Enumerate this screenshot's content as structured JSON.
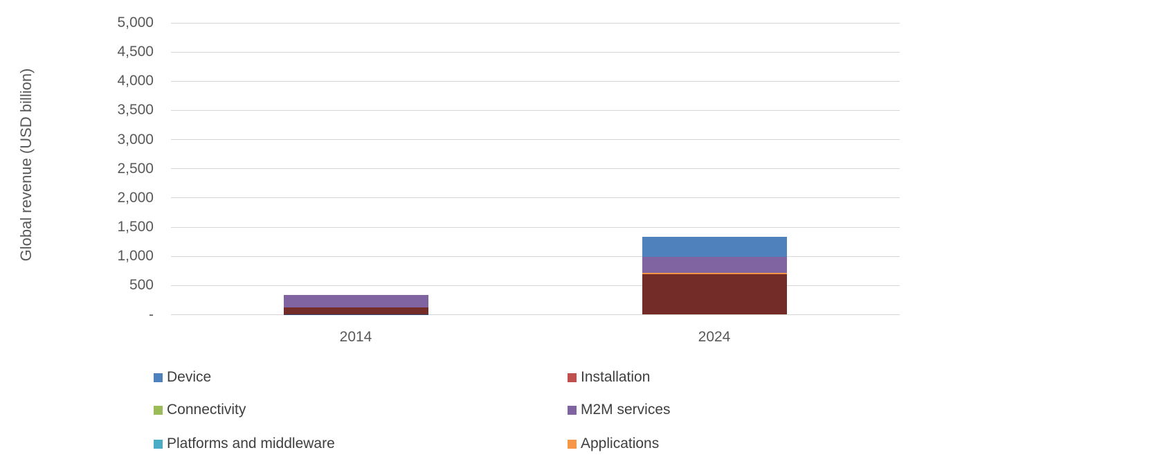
{
  "chart_data": {
    "type": "bar",
    "subtype": "stacked",
    "title": "",
    "xlabel": "",
    "ylabel": "Global revenue (USD billion)",
    "categories": [
      "2014",
      "2024"
    ],
    "series": [
      {
        "name": "Device",
        "color": "#4f81bd",
        "values": [
          330,
          1330
        ],
        "legend_visible": true
      },
      {
        "name": "Installation",
        "color": "#c0504d",
        "values": [
          70,
          150
        ],
        "legend_visible": true
      },
      {
        "name": "Connectivity",
        "color": "#9bbb59",
        "values": [
          10,
          30
        ],
        "legend_visible": true
      },
      {
        "name": "M2M services",
        "color": "#8064a2",
        "values": [
          335,
          990
        ],
        "legend_visible": true
      },
      {
        "name": "Platforms and middleware",
        "color": "#4bacc6",
        "values": [
          15,
          260
        ],
        "legend_visible": true
      },
      {
        "name": "Applications",
        "color": "#f79646",
        "values": [
          30,
          720
        ],
        "legend_visible": true
      },
      {
        "name": "",
        "color": "#2c4d75",
        "values": [
          10,
          130
        ],
        "legend_visible": false
      },
      {
        "name": "",
        "color": "#732c28",
        "values": [
          120,
          690
        ],
        "legend_visible": false
      }
    ],
    "ylim": [
      0,
      5000
    ],
    "ytick_step": 500,
    "yticks": [
      {
        "value": 0,
        "label": "-"
      },
      {
        "value": 500,
        "label": "500"
      },
      {
        "value": 1000,
        "label": "1,000"
      },
      {
        "value": 1500,
        "label": "1,500"
      },
      {
        "value": 2000,
        "label": "2,000"
      },
      {
        "value": 2500,
        "label": "2,500"
      },
      {
        "value": 3000,
        "label": "3,000"
      },
      {
        "value": 3500,
        "label": "3,500"
      },
      {
        "value": 4000,
        "label": "4,000"
      },
      {
        "value": 4500,
        "label": "4,500"
      },
      {
        "value": 5000,
        "label": "5,000"
      }
    ],
    "grid": true,
    "legend_position": "bottom",
    "legend_columns": 2
  },
  "colors": {
    "background": "#ffffff",
    "gridline": "#d6d6d6",
    "axis_text": "#595959",
    "legend_text": "#3f3f3f"
  }
}
